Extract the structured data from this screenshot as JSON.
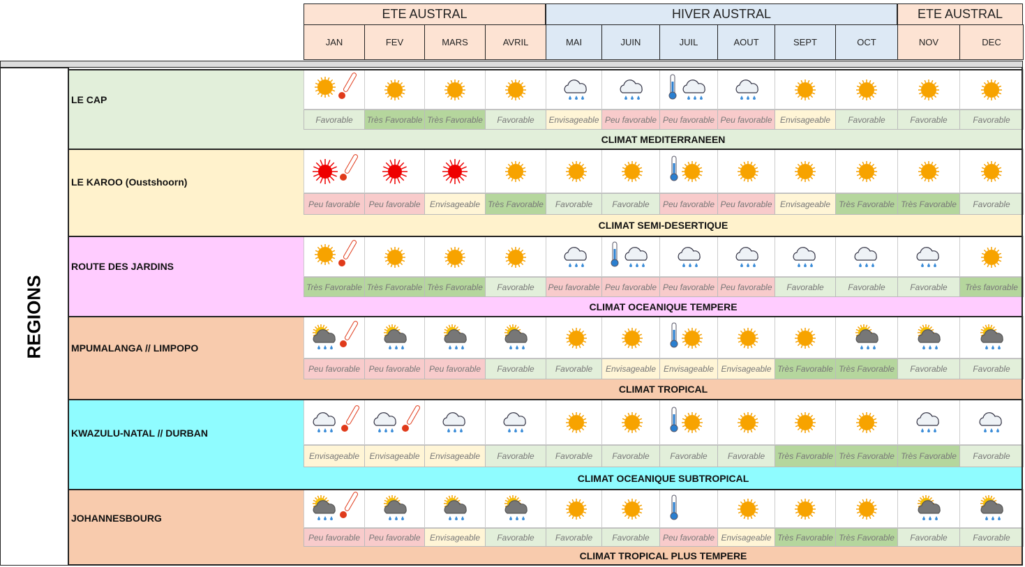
{
  "header": {
    "seasons": [
      "ETE AUSTRAL",
      "HIVER AUSTRAL",
      "ETE AUSTRAL"
    ],
    "months": [
      "JAN",
      "FEV",
      "MARS",
      "AVRIL",
      "MAI",
      "JUIN",
      "JUIL",
      "AOUT",
      "SEPT",
      "OCT",
      "NOV",
      "DEC"
    ]
  },
  "row_header": "REGIONS",
  "regions": [
    {
      "name": "LE CAP",
      "climate": "CLIMAT MEDITERRANEEN",
      "ratings": [
        "Favorable",
        "Très Favorable",
        "Très Favorable",
        "Favorable",
        "Envisageable",
        "Peu favorable",
        "Peu favorable",
        "Peu favorable",
        "Envisageable",
        "Favorable",
        "Favorable",
        "Favorable"
      ]
    },
    {
      "name": "LE KAROO (Oustshoorn)",
      "climate": "CLIMAT SEMI-DESERTIQUE",
      "ratings": [
        "Peu favorable",
        "Peu favorable",
        "Envisageable",
        "Très Favorable",
        "Favorable",
        "Favorable",
        "Peu favorable",
        "Peu favorable",
        "Envisageable",
        "Très Favorable",
        "Très Favorable",
        "Favorable"
      ]
    },
    {
      "name": "ROUTE DES JARDINS",
      "climate": "CLIMAT OCEANIQUE TEMPERE",
      "ratings": [
        "Très Favorable",
        "Très Favorable",
        "Très Favorable",
        "Favorable",
        "Peu favorable",
        "Peu favorable",
        "Peu favorable",
        "Peu favorable",
        "Favorable",
        "Favorable",
        "Favorable",
        "Très favorable"
      ]
    },
    {
      "name": "MPUMALANGA // LIMPOPO",
      "climate": "CLIMAT TROPICAL",
      "ratings": [
        "Peu favorable",
        "Peu favorable",
        "Peu favorable",
        "Favorable",
        "Favorable",
        "Envisageable",
        "Envisageable",
        "Envisageable",
        "Très Favorable",
        "Très Favorable",
        "Favorable",
        "Favorable"
      ]
    },
    {
      "name": "KWAZULU-NATAL // DURBAN",
      "climate": "CLIMAT OCEANIQUE SUBTROPICAL",
      "ratings": [
        "Envisageable",
        "Envisageable",
        "Envisageable",
        "Favorable",
        "Favorable",
        "Favorable",
        "Favorable",
        "Favorable",
        "Très Favorable",
        "Très Favorable",
        "Très Favorable",
        "Favorable"
      ]
    },
    {
      "name": "JOHANNESBOURG",
      "climate": "CLIMAT TROPICAL PLUS TEMPERE",
      "ratings": [
        "Peu favorable",
        "Peu favorable",
        "Envisageable",
        "Favorable",
        "Favorable",
        "Favorable",
        "Peu favorable",
        "Envisageable",
        "Très Favorable",
        "Très Favorable",
        "Favorable",
        "Favorable"
      ]
    }
  ]
}
